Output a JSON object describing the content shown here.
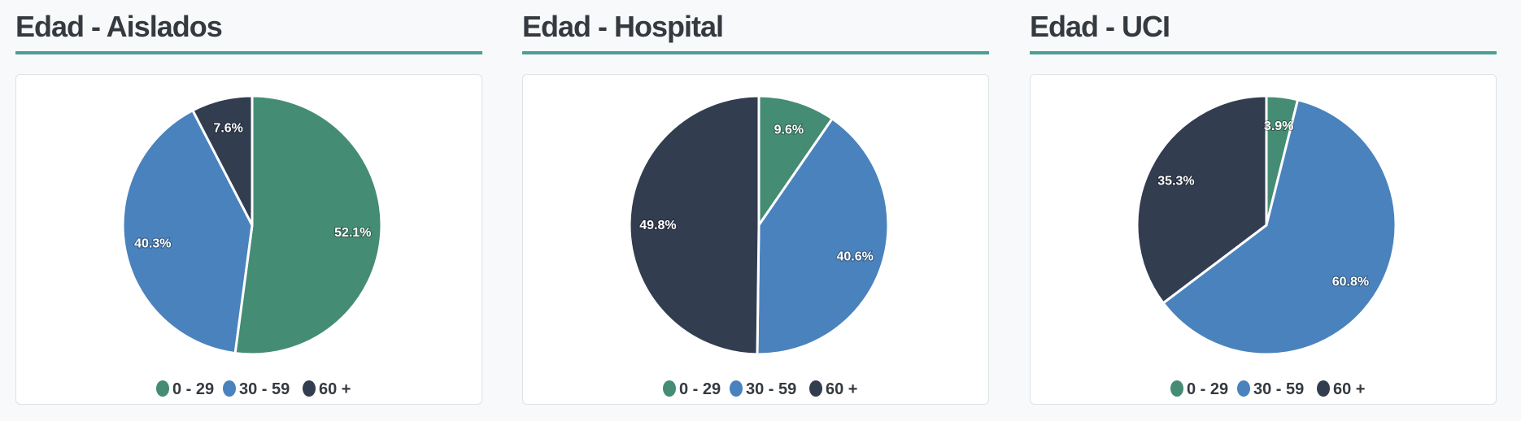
{
  "colors": [
    "#458c74",
    "#4a82bd",
    "#323d50"
  ],
  "chart_data": [
    {
      "type": "pie",
      "title": "Edad - Aislados",
      "categories": [
        "0 - 29",
        "30 - 59",
        "60 +"
      ],
      "values": [
        52.1,
        40.3,
        7.6
      ],
      "labels": [
        "52.1%",
        "40.3%",
        "7.6%"
      ],
      "legend": "bottom"
    },
    {
      "type": "pie",
      "title": "Edad - Hospital",
      "categories": [
        "0 - 29",
        "30 - 59",
        "60 +"
      ],
      "values": [
        9.6,
        40.6,
        49.8
      ],
      "labels": [
        "9.6%",
        "40.6%",
        "49.8%"
      ],
      "legend": "bottom"
    },
    {
      "type": "pie",
      "title": "Edad - UCI",
      "categories": [
        "0 - 29",
        "30 - 59",
        "60 +"
      ],
      "values": [
        3.9,
        60.8,
        35.3
      ],
      "labels": [
        "3.9%",
        "60.8%",
        "35.3%"
      ],
      "legend": "bottom"
    }
  ]
}
